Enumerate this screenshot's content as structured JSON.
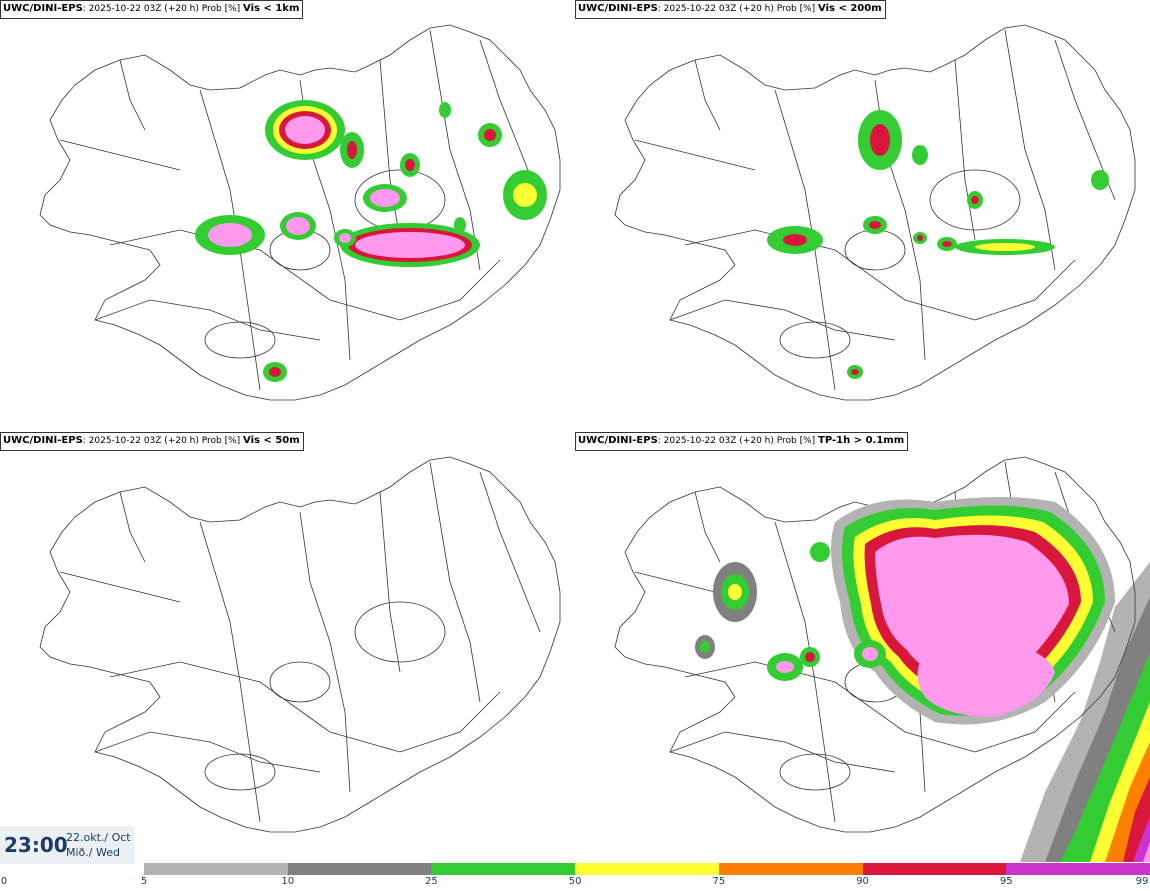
{
  "panels": [
    {
      "id": "vis1km",
      "model": "UWC/DINI-EPS",
      "info": ": 2025-10-22 03Z (+20 h) Prob [%]",
      "variable": "Vis < 1km"
    },
    {
      "id": "vis200m",
      "model": "UWC/DINI-EPS",
      "info": ": 2025-10-22 03Z (+20 h) Prob [%]",
      "variable": "Vis < 200m"
    },
    {
      "id": "vis50m",
      "model": "UWC/DINI-EPS",
      "info": ": 2025-10-22 03Z (+20 h) Prob [%]",
      "variable": "Vis < 50m"
    },
    {
      "id": "tp1h",
      "model": "UWC/DINI-EPS",
      "info": ": 2025-10-22 03Z (+20 h) Prob [%]",
      "variable": "TP-1h > 0.1mm"
    }
  ],
  "valid_time": {
    "time": "23:00",
    "date_line1": "22.okt./ Oct",
    "date_line2": "Mið./ Wed"
  },
  "colorbar": {
    "ticks": [
      "0",
      "5",
      "10",
      "25",
      "50",
      "75",
      "90",
      "95",
      "99"
    ],
    "segments": [
      {
        "from": "5",
        "to": "10",
        "color": "#b3b3b3"
      },
      {
        "from": "10",
        "to": "25",
        "color": "#808080"
      },
      {
        "from": "25",
        "to": "50",
        "color": "#33cc33"
      },
      {
        "from": "50",
        "to": "75",
        "color": "#ffff33"
      },
      {
        "from": "75",
        "to": "90",
        "color": "#ff7f00"
      },
      {
        "from": "90",
        "to": "95",
        "color": "#d9163c"
      },
      {
        "from": "95",
        "to": "99",
        "color": "#cc33cc"
      }
    ]
  },
  "colors": {
    "high": "#ff99ee",
    "outline": "#333333",
    "label_text": "#1a3d63"
  }
}
